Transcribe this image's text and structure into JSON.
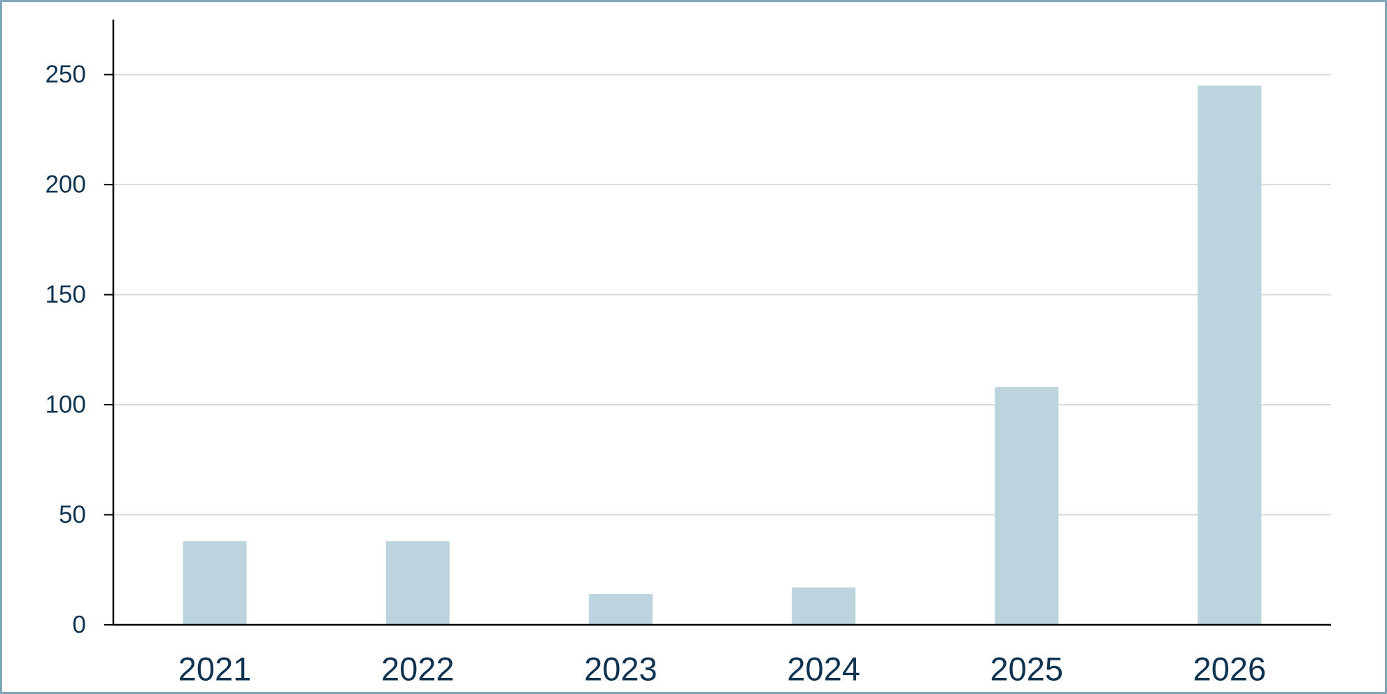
{
  "chart_data": {
    "type": "bar",
    "categories": [
      "2021",
      "2022",
      "2023",
      "2024",
      "2025",
      "2026"
    ],
    "values": [
      38,
      38,
      14,
      17,
      108,
      245
    ],
    "color": "#bcd4dd",
    "ylim": [
      0,
      275
    ],
    "yticks": [
      0,
      50,
      100,
      150,
      200,
      250
    ],
    "grid": true
  }
}
